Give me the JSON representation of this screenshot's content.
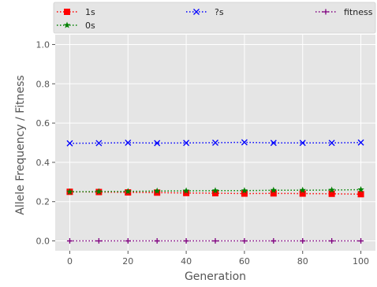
{
  "chart_data": {
    "type": "line",
    "xlabel": "Generation",
    "ylabel": "Allele Frequency / Fitness",
    "xlim": [
      -5,
      105
    ],
    "ylim": [
      -0.05,
      1.05
    ],
    "xticks": [
      0,
      20,
      40,
      60,
      80,
      100
    ],
    "xtick_labels": [
      "0",
      "20",
      "40",
      "60",
      "80",
      "100"
    ],
    "yticks": [
      0.0,
      0.2,
      0.4,
      0.6,
      0.8,
      1.0
    ],
    "ytick_labels": [
      "0.0",
      "0.2",
      "0.4",
      "0.6",
      "0.8",
      "1.0"
    ],
    "grid": true,
    "legend_position": "top",
    "x": [
      0,
      10,
      20,
      30,
      40,
      50,
      60,
      70,
      80,
      90,
      100
    ],
    "series": [
      {
        "name": "1s",
        "color": "#ff0000",
        "marker": "square",
        "line_style": "dotted",
        "values": [
          0.25,
          0.249,
          0.247,
          0.246,
          0.244,
          0.243,
          0.241,
          0.242,
          0.241,
          0.24,
          0.238
        ]
      },
      {
        "name": "?s",
        "color": "#0000ff",
        "marker": "x",
        "line_style": "dotted",
        "values": [
          0.497,
          0.498,
          0.5,
          0.498,
          0.499,
          0.5,
          0.502,
          0.499,
          0.499,
          0.499,
          0.501
        ]
      },
      {
        "name": "fitness",
        "color": "#800080",
        "marker": "plus",
        "line_style": "dotted",
        "values": [
          0.0,
          0.0,
          0.0,
          0.0,
          0.0,
          0.0,
          0.0,
          0.0,
          0.0,
          0.0,
          0.0
        ]
      },
      {
        "name": "0s",
        "color": "#008000",
        "marker": "star",
        "line_style": "dotted",
        "values": [
          0.25,
          0.251,
          0.252,
          0.254,
          0.255,
          0.256,
          0.256,
          0.258,
          0.258,
          0.259,
          0.261
        ]
      }
    ]
  }
}
